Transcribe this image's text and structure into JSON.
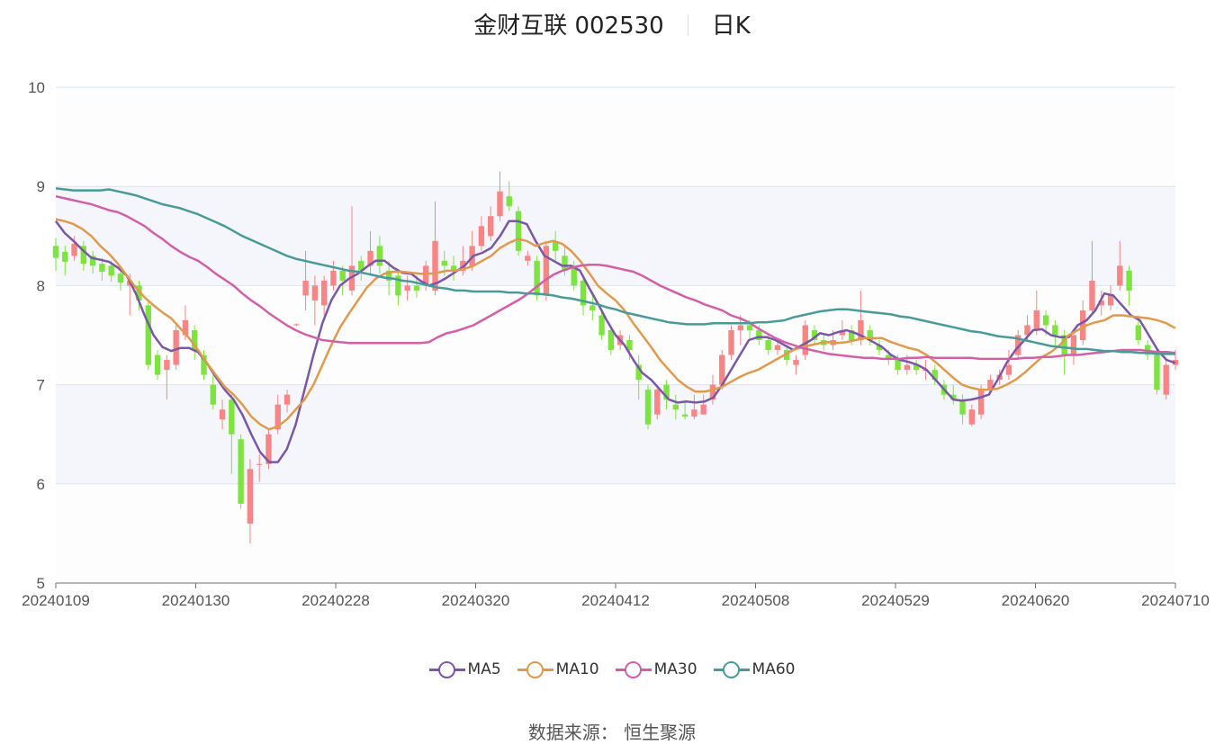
{
  "header": {
    "stock": "金财互联 002530",
    "period": "日K"
  },
  "source": {
    "label": "数据来源：",
    "value": "恒生聚源"
  },
  "chart_data": {
    "type": "candlestick",
    "ylim": [
      5,
      10
    ],
    "yticks": [
      "10",
      "9",
      "8",
      "7",
      "6",
      "5"
    ],
    "xtick_labels": [
      "20240109",
      "20240130",
      "20240228",
      "20240320",
      "20240412",
      "20240508",
      "20240529",
      "20240620",
      "20240710"
    ],
    "grid": true,
    "legend_position": "bottom",
    "colors": {
      "up": "#f78585",
      "down": "#7de33f",
      "band": "#f4f6fb",
      "grid": "#d9e2f2",
      "axis": "#6e7079"
    },
    "series": [
      {
        "name": "MA5",
        "color": "#7b57a8",
        "values": [
          8.65,
          8.53,
          8.45,
          8.36,
          8.28,
          8.26,
          8.24,
          8.18,
          8.1,
          7.92,
          7.7,
          7.5,
          7.38,
          7.34,
          7.37,
          7.37,
          7.33,
          7.22,
          7.08,
          6.95,
          6.85,
          6.7,
          6.5,
          6.32,
          6.22,
          6.22,
          6.35,
          6.6,
          6.95,
          7.3,
          7.62,
          7.85,
          8.0,
          8.07,
          8.12,
          8.19,
          8.25,
          8.25,
          8.18,
          8.13,
          8.12,
          8.05,
          8.0,
          8.03,
          8.08,
          8.14,
          8.2,
          8.3,
          8.33,
          8.38,
          8.5,
          8.65,
          8.65,
          8.62,
          8.45,
          8.3,
          8.25,
          8.2,
          8.2,
          8.15,
          7.98,
          7.82,
          7.65,
          7.5,
          7.4,
          7.25,
          7.12,
          7.05,
          6.95,
          6.85,
          6.82,
          6.83,
          6.82,
          6.83,
          6.87,
          7.0,
          7.15,
          7.3,
          7.45,
          7.48,
          7.48,
          7.45,
          7.4,
          7.35,
          7.4,
          7.45,
          7.52,
          7.5,
          7.53,
          7.55,
          7.52,
          7.48,
          7.43,
          7.38,
          7.3,
          7.25,
          7.23,
          7.2,
          7.15,
          7.05,
          6.95,
          6.85,
          6.84,
          6.85,
          6.87,
          6.9,
          7.05,
          7.22,
          7.35,
          7.45,
          7.55,
          7.56,
          7.5,
          7.48,
          7.48,
          7.6,
          7.65,
          7.75,
          7.92,
          7.9,
          7.8,
          7.7,
          7.65,
          7.5,
          7.35,
          7.25,
          7.22
        ]
      },
      {
        "name": "MA10",
        "color": "#e09a4e",
        "values": [
          8.67,
          8.65,
          8.62,
          8.57,
          8.5,
          8.4,
          8.32,
          8.22,
          8.1,
          7.98,
          7.88,
          7.8,
          7.73,
          7.67,
          7.57,
          7.47,
          7.35,
          7.22,
          7.1,
          6.98,
          6.9,
          6.8,
          6.68,
          6.6,
          6.55,
          6.58,
          6.65,
          6.75,
          6.85,
          7.0,
          7.2,
          7.4,
          7.58,
          7.72,
          7.85,
          7.98,
          8.07,
          8.12,
          8.14,
          8.14,
          8.13,
          8.12,
          8.12,
          8.13,
          8.15,
          8.15,
          8.17,
          8.2,
          8.25,
          8.3,
          8.38,
          8.43,
          8.47,
          8.45,
          8.4,
          8.43,
          8.45,
          8.42,
          8.35,
          8.25,
          8.13,
          8.0,
          7.92,
          7.85,
          7.75,
          7.62,
          7.5,
          7.38,
          7.25,
          7.15,
          7.05,
          6.98,
          6.93,
          6.93,
          6.95,
          6.98,
          7.03,
          7.08,
          7.12,
          7.15,
          7.2,
          7.25,
          7.3,
          7.35,
          7.38,
          7.4,
          7.42,
          7.43,
          7.42,
          7.43,
          7.45,
          7.47,
          7.47,
          7.47,
          7.43,
          7.4,
          7.37,
          7.35,
          7.3,
          7.23,
          7.15,
          7.07,
          7.0,
          6.97,
          6.95,
          6.95,
          6.96,
          7.0,
          7.05,
          7.12,
          7.2,
          7.28,
          7.33,
          7.4,
          7.5,
          7.55,
          7.6,
          7.63,
          7.65,
          7.7,
          7.7,
          7.69,
          7.68,
          7.67,
          7.65,
          7.62,
          7.57
        ]
      },
      {
        "name": "MA30",
        "color": "#d260a8",
        "values": [
          8.9,
          8.88,
          8.86,
          8.84,
          8.82,
          8.79,
          8.76,
          8.74,
          8.7,
          8.65,
          8.6,
          8.53,
          8.47,
          8.4,
          8.34,
          8.29,
          8.25,
          8.19,
          8.12,
          8.06,
          8.0,
          7.92,
          7.85,
          7.79,
          7.72,
          7.66,
          7.6,
          7.55,
          7.51,
          7.48,
          7.45,
          7.44,
          7.43,
          7.42,
          7.42,
          7.42,
          7.42,
          7.42,
          7.42,
          7.42,
          7.42,
          7.42,
          7.43,
          7.48,
          7.52,
          7.54,
          7.57,
          7.6,
          7.65,
          7.7,
          7.75,
          7.8,
          7.85,
          7.91,
          7.98,
          8.05,
          8.11,
          8.15,
          8.18,
          8.2,
          8.21,
          8.21,
          8.2,
          8.18,
          8.16,
          8.14,
          8.1,
          8.05,
          8.0,
          7.96,
          7.92,
          7.88,
          7.85,
          7.81,
          7.78,
          7.75,
          7.7,
          7.67,
          7.63,
          7.57,
          7.52,
          7.47,
          7.43,
          7.4,
          7.37,
          7.35,
          7.33,
          7.31,
          7.3,
          7.29,
          7.28,
          7.27,
          7.27,
          7.26,
          7.26,
          7.26,
          7.27,
          7.27,
          7.28,
          7.27,
          7.27,
          7.27,
          7.27,
          7.27,
          7.26,
          7.26,
          7.26,
          7.26,
          7.26,
          7.27,
          7.27,
          7.28,
          7.28,
          7.29,
          7.3,
          7.3,
          7.31,
          7.32,
          7.33,
          7.34,
          7.35,
          7.35,
          7.35,
          7.34,
          7.33,
          7.33,
          7.32
        ]
      },
      {
        "name": "MA60",
        "color": "#4a9a9a",
        "values": [
          8.98,
          8.97,
          8.96,
          8.96,
          8.96,
          8.96,
          8.97,
          8.95,
          8.93,
          8.91,
          8.88,
          8.85,
          8.82,
          8.8,
          8.78,
          8.75,
          8.72,
          8.68,
          8.64,
          8.6,
          8.55,
          8.5,
          8.46,
          8.42,
          8.38,
          8.34,
          8.3,
          8.27,
          8.25,
          8.23,
          8.21,
          8.19,
          8.17,
          8.15,
          8.14,
          8.12,
          8.1,
          8.08,
          8.07,
          8.05,
          8.04,
          8.02,
          8.0,
          7.98,
          7.97,
          7.95,
          7.95,
          7.94,
          7.94,
          7.94,
          7.94,
          7.93,
          7.93,
          7.92,
          7.92,
          7.91,
          7.9,
          7.88,
          7.87,
          7.85,
          7.83,
          7.81,
          7.78,
          7.76,
          7.73,
          7.71,
          7.69,
          7.67,
          7.65,
          7.63,
          7.62,
          7.61,
          7.61,
          7.61,
          7.62,
          7.62,
          7.62,
          7.62,
          7.62,
          7.63,
          7.63,
          7.64,
          7.65,
          7.68,
          7.7,
          7.72,
          7.74,
          7.75,
          7.76,
          7.76,
          7.75,
          7.74,
          7.73,
          7.72,
          7.71,
          7.69,
          7.68,
          7.66,
          7.64,
          7.62,
          7.6,
          7.58,
          7.56,
          7.54,
          7.53,
          7.51,
          7.49,
          7.48,
          7.47,
          7.45,
          7.43,
          7.41,
          7.39,
          7.38,
          7.37,
          7.36,
          7.36,
          7.35,
          7.34,
          7.34,
          7.33,
          7.33,
          7.32,
          7.32,
          7.31,
          7.31,
          7.31
        ]
      }
    ],
    "candles": [
      [
        8.4,
        8.28,
        8.48,
        8.15
      ],
      [
        8.34,
        8.24,
        8.4,
        8.1
      ],
      [
        8.3,
        8.42,
        8.5,
        8.25
      ],
      [
        8.4,
        8.22,
        8.45,
        8.15
      ],
      [
        8.3,
        8.2,
        8.35,
        8.12
      ],
      [
        8.22,
        8.14,
        8.28,
        8.05
      ],
      [
        8.2,
        8.1,
        8.25,
        8.04
      ],
      [
        8.12,
        8.03,
        8.2,
        7.95
      ],
      [
        8.0,
        8.05,
        8.12,
        7.7
      ],
      [
        8.0,
        7.85,
        8.05,
        7.75
      ],
      [
        7.8,
        7.2,
        7.85,
        7.15
      ],
      [
        7.3,
        7.1,
        7.35,
        7.05
      ],
      [
        7.15,
        7.25,
        7.3,
        6.85
      ],
      [
        7.2,
        7.55,
        7.6,
        7.15
      ],
      [
        7.5,
        7.65,
        7.8,
        7.45
      ],
      [
        7.55,
        7.35,
        7.6,
        7.25
      ],
      [
        7.3,
        7.1,
        7.35,
        7.05
      ],
      [
        7.0,
        6.8,
        7.1,
        6.75
      ],
      [
        6.65,
        6.75,
        6.85,
        6.55
      ],
      [
        6.85,
        6.5,
        6.9,
        6.1
      ],
      [
        6.45,
        5.8,
        6.5,
        5.75
      ],
      [
        5.6,
        6.15,
        6.25,
        5.4
      ],
      [
        6.2,
        6.2,
        6.3,
        6.02
      ],
      [
        6.2,
        6.5,
        6.55,
        6.15
      ],
      [
        6.55,
        6.8,
        6.9,
        6.5
      ],
      [
        6.8,
        6.9,
        6.95,
        6.72
      ],
      [
        7.6,
        7.61,
        7.62,
        7.59
      ],
      [
        7.9,
        8.05,
        8.35,
        7.75
      ],
      [
        7.85,
        8.0,
        8.1,
        7.6
      ],
      [
        7.8,
        8.05,
        8.1,
        7.7
      ],
      [
        8.0,
        8.15,
        8.25,
        7.95
      ],
      [
        8.15,
        8.05,
        8.2,
        7.9
      ],
      [
        7.95,
        8.2,
        8.8,
        7.9
      ],
      [
        8.25,
        8.15,
        8.3,
        8.05
      ],
      [
        8.2,
        8.35,
        8.55,
        8.1
      ],
      [
        8.4,
        8.2,
        8.5,
        8.12
      ],
      [
        8.15,
        8.05,
        8.25,
        7.9
      ],
      [
        8.1,
        7.9,
        8.15,
        7.8
      ],
      [
        7.95,
        8.0,
        8.1,
        7.85
      ],
      [
        8.0,
        7.95,
        8.1,
        7.88
      ],
      [
        8.0,
        8.2,
        8.25,
        7.95
      ],
      [
        7.95,
        8.45,
        8.85,
        7.9
      ],
      [
        8.25,
        8.2,
        8.35,
        8.1
      ],
      [
        8.2,
        8.15,
        8.3,
        8.05
      ],
      [
        8.15,
        8.25,
        8.4,
        8.1
      ],
      [
        8.2,
        8.4,
        8.55,
        8.15
      ],
      [
        8.4,
        8.6,
        8.7,
        8.35
      ],
      [
        8.5,
        8.7,
        8.8,
        8.45
      ],
      [
        8.7,
        8.95,
        9.15,
        8.65
      ],
      [
        8.9,
        8.8,
        9.05,
        8.75
      ],
      [
        8.75,
        8.35,
        8.8,
        8.3
      ],
      [
        8.25,
        8.3,
        8.35,
        8.2
      ],
      [
        8.25,
        7.9,
        8.3,
        7.85
      ],
      [
        7.9,
        8.4,
        8.45,
        7.85
      ],
      [
        8.45,
        8.35,
        8.55,
        8.25
      ],
      [
        8.3,
        8.15,
        8.4,
        8.1
      ],
      [
        8.2,
        8.0,
        8.25,
        7.95
      ],
      [
        8.05,
        7.8,
        8.1,
        7.7
      ],
      [
        7.8,
        7.75,
        7.9,
        7.65
      ],
      [
        7.7,
        7.5,
        7.75,
        7.45
      ],
      [
        7.55,
        7.35,
        7.6,
        7.3
      ],
      [
        7.4,
        7.5,
        7.55,
        7.35
      ],
      [
        7.45,
        7.35,
        7.5,
        7.25
      ],
      [
        7.2,
        7.05,
        7.3,
        6.85
      ],
      [
        6.95,
        6.6,
        7.0,
        6.55
      ],
      [
        6.7,
        6.95,
        7.0,
        6.65
      ],
      [
        7.0,
        6.85,
        7.05,
        6.75
      ],
      [
        6.8,
        6.75,
        6.9,
        6.65
      ],
      [
        6.7,
        6.68,
        6.85,
        6.65
      ],
      [
        6.68,
        6.75,
        6.9,
        6.65
      ],
      [
        6.7,
        6.8,
        6.9,
        6.7
      ],
      [
        6.85,
        7.0,
        7.1,
        6.8
      ],
      [
        7.0,
        7.3,
        7.35,
        6.95
      ],
      [
        7.3,
        7.55,
        7.6,
        7.25
      ],
      [
        7.55,
        7.6,
        7.7,
        7.4
      ],
      [
        7.6,
        7.55,
        7.65,
        7.45
      ],
      [
        7.55,
        7.45,
        7.6,
        7.4
      ],
      [
        7.45,
        7.35,
        7.5,
        7.3
      ],
      [
        7.35,
        7.4,
        7.45,
        7.3
      ],
      [
        7.35,
        7.25,
        7.4,
        7.2
      ],
      [
        7.2,
        7.25,
        7.3,
        7.1
      ],
      [
        7.3,
        7.6,
        7.65,
        7.25
      ],
      [
        7.55,
        7.45,
        7.6,
        7.4
      ],
      [
        7.45,
        7.4,
        7.5,
        7.35
      ],
      [
        7.4,
        7.45,
        7.55,
        7.35
      ],
      [
        7.5,
        7.55,
        7.65,
        7.45
      ],
      [
        7.55,
        7.45,
        7.6,
        7.4
      ],
      [
        7.45,
        7.65,
        7.95,
        7.4
      ],
      [
        7.55,
        7.45,
        7.6,
        7.4
      ],
      [
        7.4,
        7.35,
        7.45,
        7.3
      ],
      [
        7.3,
        7.25,
        7.35,
        7.2
      ],
      [
        7.25,
        7.15,
        7.3,
        7.1
      ],
      [
        7.15,
        7.2,
        7.3,
        7.1
      ],
      [
        7.2,
        7.15,
        7.25,
        7.1
      ],
      [
        7.15,
        7.15,
        7.25,
        7.05
      ],
      [
        7.15,
        7.05,
        7.2,
        7.0
      ],
      [
        7.0,
        6.9,
        7.05,
        6.85
      ],
      [
        6.9,
        6.85,
        7.0,
        6.8
      ],
      [
        6.85,
        6.7,
        6.9,
        6.6
      ],
      [
        6.6,
        6.75,
        6.8,
        6.58
      ],
      [
        6.7,
        6.95,
        7.0,
        6.65
      ],
      [
        6.95,
        7.05,
        7.1,
        6.9
      ],
      [
        7.05,
        7.1,
        7.15,
        7.0
      ],
      [
        7.1,
        7.2,
        7.35,
        7.05
      ],
      [
        7.3,
        7.5,
        7.55,
        7.25
      ],
      [
        7.5,
        7.6,
        7.7,
        7.45
      ],
      [
        7.55,
        7.75,
        7.95,
        7.5
      ],
      [
        7.7,
        7.6,
        7.75,
        7.5
      ],
      [
        7.6,
        7.5,
        7.65,
        7.4
      ],
      [
        7.5,
        7.3,
        7.55,
        7.1
      ],
      [
        7.3,
        7.5,
        7.55,
        7.2
      ],
      [
        7.45,
        7.75,
        7.85,
        7.4
      ],
      [
        7.75,
        8.05,
        8.45,
        7.7
      ],
      [
        7.8,
        7.85,
        7.95,
        7.7
      ],
      [
        7.8,
        7.9,
        8.0,
        7.75
      ],
      [
        8.0,
        8.2,
        8.45,
        7.95
      ],
      [
        8.15,
        7.95,
        8.2,
        7.8
      ],
      [
        7.6,
        7.45,
        7.7,
        7.4
      ],
      [
        7.4,
        7.3,
        7.45,
        7.25
      ],
      [
        7.3,
        6.95,
        7.35,
        6.9
      ],
      [
        6.9,
        7.2,
        7.25,
        6.85
      ],
      [
        7.2,
        7.25,
        7.35,
        7.15
      ]
    ]
  }
}
